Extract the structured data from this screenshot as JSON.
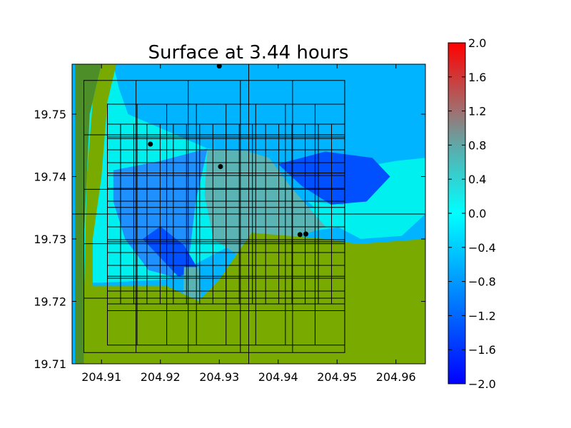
{
  "chart_data": {
    "type": "heatmap",
    "title": "Surface at 3.44 hours",
    "xlabel": "",
    "ylabel": "",
    "xlim": [
      204.905,
      204.965
    ],
    "ylim": [
      19.71,
      19.758
    ],
    "x_ticks": [
      "204.91",
      "204.92",
      "204.93",
      "204.94",
      "204.95",
      "204.96"
    ],
    "y_ticks": [
      "19.71",
      "19.72",
      "19.73",
      "19.74",
      "19.75"
    ],
    "colorbar": {
      "min": -2.0,
      "max": 2.0,
      "ticks": [
        "2.0",
        "1.6",
        "1.2",
        "0.8",
        "0.4",
        "0.0",
        "−0.4",
        "−0.8",
        "−1.2",
        "−1.6",
        "−2.0"
      ],
      "stops": [
        {
          "value": -2.0,
          "color": "#0000ff"
        },
        {
          "value": 0.0,
          "color": "#00ffff"
        },
        {
          "value": 0.8,
          "color": "#60a8a8"
        },
        {
          "value": 1.2,
          "color": "#a07070"
        },
        {
          "value": 2.0,
          "color": "#ff0000"
        }
      ]
    },
    "colors": {
      "land": "#78aa00",
      "land_dark": "#4e8e28",
      "shallow": "#00f0f0",
      "offshore": "#00b4ff",
      "deep": "#0050ff",
      "mid": "#1e90ff",
      "raised": "#5ab4b4",
      "grid_line": "#000000"
    },
    "gauges": [
      {
        "x": 204.93,
        "y": 19.7577
      },
      {
        "x": 204.9183,
        "y": 19.7452
      },
      {
        "x": 204.9302,
        "y": 19.7416
      },
      {
        "x": 204.9437,
        "y": 19.7307
      },
      {
        "x": 204.9447,
        "y": 19.7308
      }
    ],
    "amr_patches": [
      {
        "x": [
          204.907,
          204.9513
        ],
        "y": [
          19.7118,
          19.7554
        ],
        "cols": 5,
        "rows": 5
      },
      {
        "x": [
          204.911,
          204.9513
        ],
        "y": [
          19.713,
          19.7516
        ],
        "cols": 8,
        "rows": 7
      },
      {
        "x": [
          204.911,
          204.9513
        ],
        "y": [
          19.7196,
          19.7484
        ],
        "cols": 18,
        "rows": 14
      }
    ],
    "coarse_lines": {
      "x": [
        204.935
      ],
      "y": [
        19.734
      ]
    }
  }
}
